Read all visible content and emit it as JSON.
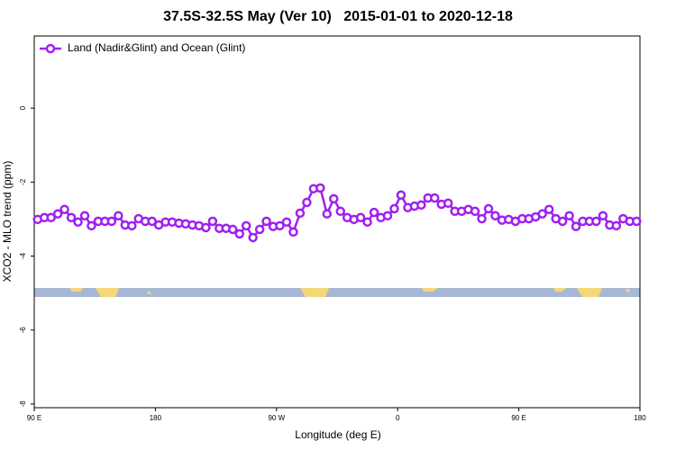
{
  "chart_data": {
    "type": "line",
    "title": "37.5S-32.5S May (Ver 10)   2015-01-01 to 2020-12-18",
    "x_label": "Longitude (deg E)",
    "y_label": "XCO2 - MLO trend (ppm)",
    "legend": "top-left",
    "xlim": [
      90,
      540
    ],
    "xticks": [
      {
        "value": 90,
        "label": "90 E"
      },
      180,
      {
        "value": 270,
        "label": "90 W"
      },
      {
        "value": 360,
        "label": "0"
      },
      {
        "value": 450,
        "label": "90 E"
      },
      {
        "value": 540,
        "label": "180"
      }
    ],
    "ylim": [
      -8.1,
      1.95
    ],
    "yticks": [
      -8,
      -6,
      -4,
      -2,
      0
    ],
    "x": [
      92.5,
      97.5,
      102.5,
      107.5,
      112.5,
      117.5,
      122.5,
      127.5,
      132.5,
      137.5,
      142.5,
      147.5,
      152.5,
      157.5,
      162.5,
      167.5,
      172.5,
      177.5,
      182.5,
      187.5,
      192.5,
      197.5,
      202.5,
      207.5,
      212.5,
      217.5,
      222.5,
      227.5,
      232.5,
      237.5,
      242.5,
      247.5,
      252.5,
      257.5,
      262.5,
      267.5,
      272.5,
      277.5,
      282.5,
      287.5,
      292.5,
      297.5,
      302.5,
      307.5,
      312.5,
      317.5,
      322.5,
      327.5,
      332.5,
      337.5,
      342.5,
      347.5,
      352.5,
      357.5,
      362.5,
      367.5,
      372.5,
      377.5,
      382.5,
      387.5,
      392.5,
      397.5,
      402.5,
      407.5,
      412.5,
      417.5,
      422.5,
      427.5,
      432.5,
      437.5,
      442.5,
      447.5,
      452.5,
      457.5,
      462.5,
      467.5,
      472.5,
      477.5,
      482.5,
      487.5,
      492.5,
      497.5,
      502.5,
      507.5,
      512.5,
      517.5,
      522.5,
      527.5,
      532.5,
      537.5
    ],
    "series": [
      {
        "name": "Land (Nadir&Glint) and Ocean (Glint)",
        "color": "#a020f0",
        "values": [
          -3.01,
          -2.96,
          -2.96,
          -2.86,
          -2.74,
          -2.96,
          -3.08,
          -2.91,
          -3.18,
          -3.06,
          -3.06,
          -3.06,
          -2.91,
          -3.16,
          -3.18,
          -2.99,
          -3.06,
          -3.06,
          -3.16,
          -3.08,
          -3.08,
          -3.11,
          -3.13,
          -3.16,
          -3.18,
          -3.23,
          -3.06,
          -3.25,
          -3.25,
          -3.28,
          -3.4,
          -3.18,
          -3.5,
          -3.28,
          -3.06,
          -3.2,
          -3.18,
          -3.08,
          -3.35,
          -2.84,
          -2.55,
          -2.18,
          -2.16,
          -2.86,
          -2.45,
          -2.79,
          -2.96,
          -3.01,
          -2.96,
          -3.08,
          -2.82,
          -2.96,
          -2.91,
          -2.72,
          -2.35,
          -2.69,
          -2.65,
          -2.62,
          -2.43,
          -2.43,
          -2.6,
          -2.57,
          -2.79,
          -2.79,
          -2.74,
          -2.79,
          -2.99,
          -2.72,
          -2.91,
          -3.03,
          -3.01,
          -3.06,
          -2.99,
          -2.99,
          -2.94,
          -2.86,
          -2.74,
          -2.99,
          -3.06,
          -2.91,
          -3.2,
          -3.06,
          -3.06,
          -3.06,
          -2.91,
          -3.16,
          -3.18,
          -2.99,
          -3.06,
          -3.06
        ]
      }
    ]
  }
}
